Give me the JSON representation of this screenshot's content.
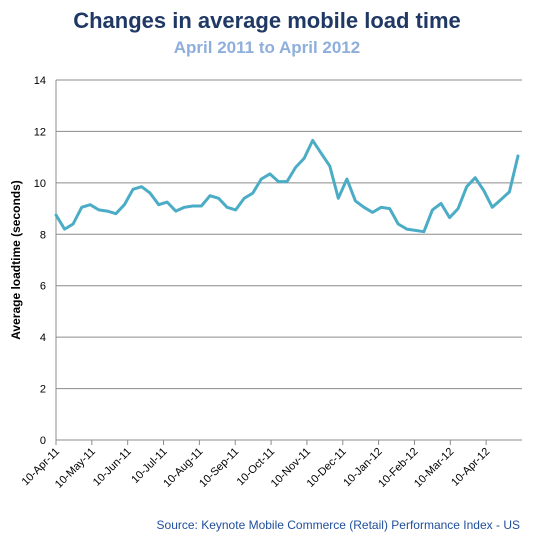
{
  "chart_data": {
    "type": "line",
    "title": "Changes in average mobile load time",
    "subtitle": "April 2011 to April 2012",
    "ylabel": "Average loadtime (seconds)",
    "xlabel": "",
    "ylim": [
      0,
      14
    ],
    "yticks": [
      0,
      2,
      4,
      6,
      8,
      10,
      12,
      14
    ],
    "grid": true,
    "line_color": "#4bacc6",
    "x_tick_labels": [
      "10-Apr-11",
      "10-May-11",
      "10-Jun-11",
      "10-Jul-11",
      "10-Aug-11",
      "10-Sep-11",
      "10-Oct-11",
      "10-Nov-11",
      "10-Dec-11",
      "10-Jan-12",
      "10-Feb-12",
      "10-Mar-12",
      "10-Apr-12"
    ],
    "series": [
      {
        "values": [
          8.75,
          8.2,
          8.4,
          9.05,
          9.15,
          8.95,
          8.9,
          8.8,
          9.15,
          9.75,
          9.85,
          9.6,
          9.15,
          9.25,
          8.9,
          9.05,
          9.1,
          9.1,
          9.5,
          9.4,
          9.05,
          8.95,
          9.4,
          9.6,
          10.15,
          10.35,
          10.05,
          10.05,
          10.6,
          10.95,
          11.65,
          11.15,
          10.65,
          9.4,
          10.15,
          9.3,
          9.05,
          8.85,
          9.05,
          9.0,
          8.4,
          8.2,
          8.15,
          8.1,
          8.95,
          9.2,
          8.65,
          9.0,
          9.85,
          10.2,
          9.7,
          9.05,
          9.35,
          9.65,
          11.05
        ]
      }
    ],
    "source": "Source: Keynote Mobile Commerce (Retail) Performance Index - US"
  }
}
